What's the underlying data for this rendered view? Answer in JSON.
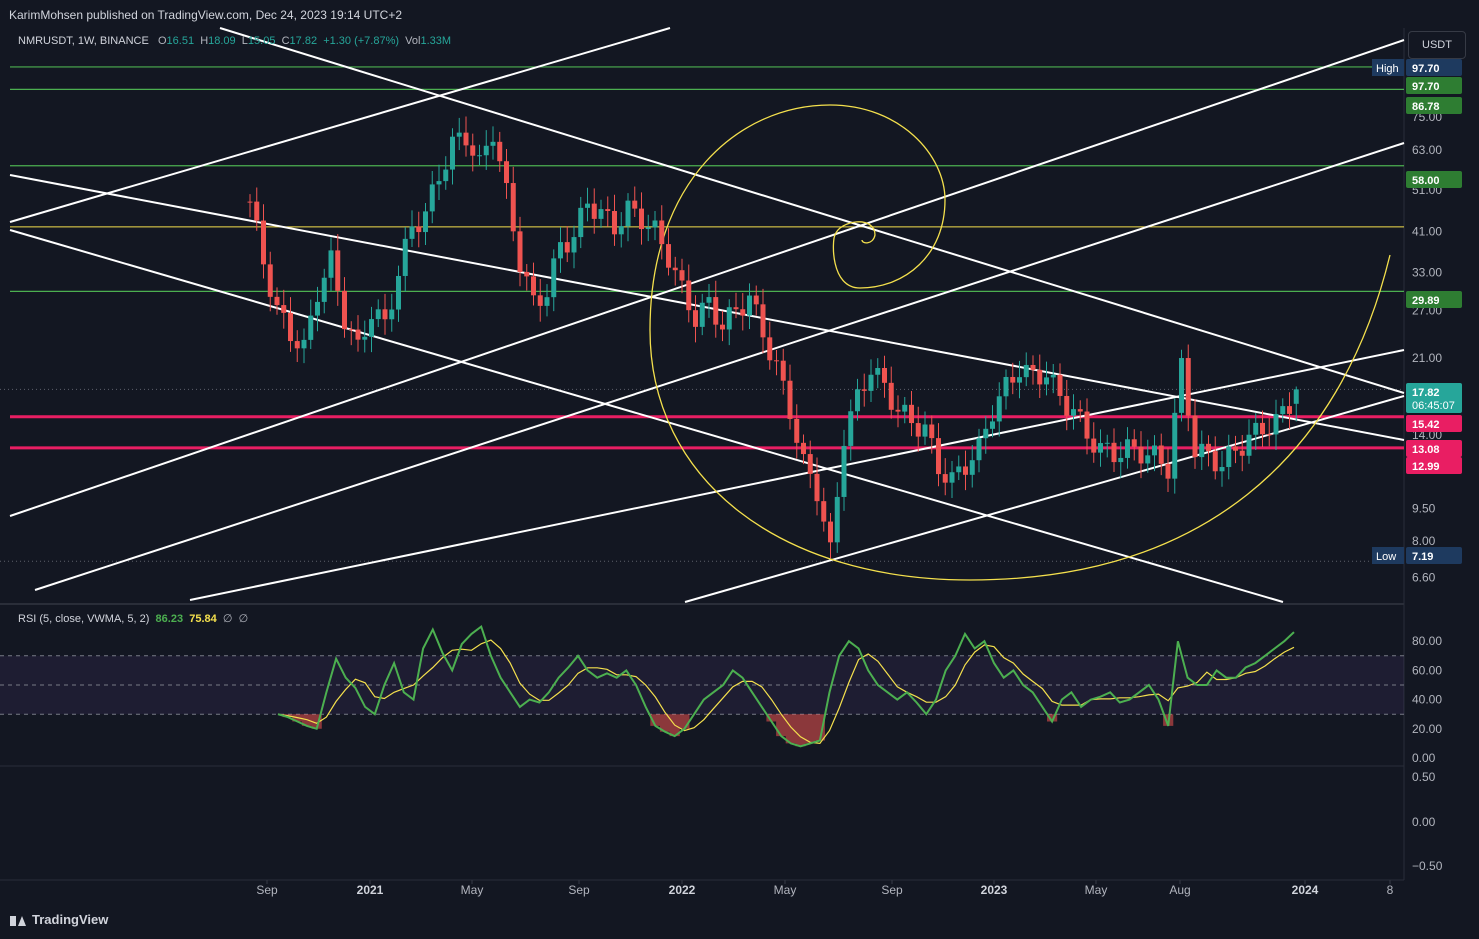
{
  "header": {
    "published_line": "KarimMohsen published on TradingView.com, Dec 24, 2023 19:14 UTC+2"
  },
  "legend": {
    "symbol": "NMRUSDT, 1W, BINANCE",
    "o_label": "O",
    "o_value": "16.51",
    "h_label": "H",
    "h_value": "18.09",
    "l_label": "L",
    "l_value": "15.05",
    "c_label": "C",
    "c_value": "17.82",
    "change": "+1.30 (+7.87%)",
    "vol_label": "Vol",
    "vol_value": "1.33M"
  },
  "rsi_legend": {
    "name": "RSI (5, close, VWMA, 5, 2)",
    "value1": "86.23",
    "value2": "75.84",
    "flag1": "∅",
    "flag2": "∅"
  },
  "price_axis": {
    "currency": "USDT",
    "ticks": [
      "75.00",
      "63.00",
      "51.00",
      "41.00",
      "33.00",
      "27.00",
      "21.00",
      "14.00",
      "9.50",
      "8.00",
      "6.60"
    ],
    "labels": [
      {
        "text": "97.70",
        "prefix": "High",
        "color": "#1e3a5f"
      },
      {
        "text": "97.70",
        "prefix": "",
        "color": "#2e7d32"
      },
      {
        "text": "86.78",
        "prefix": "",
        "color": "#2e7d32"
      },
      {
        "text": "58.00",
        "prefix": "",
        "color": "#2e7d32"
      },
      {
        "text": "29.89",
        "prefix": "",
        "color": "#2e7d32"
      },
      {
        "text": "17.82",
        "prefix": "",
        "color": "#26a69a",
        "sub": "06:45:07"
      },
      {
        "text": "15.42",
        "prefix": "",
        "color": "#e91e63"
      },
      {
        "text": "13.08",
        "prefix": "",
        "color": "#e91e63"
      },
      {
        "text": "12.99",
        "prefix": "",
        "color": "#e91e63"
      },
      {
        "text": "7.19",
        "prefix": "Low",
        "color": "#1e3a5f"
      }
    ]
  },
  "rsi_axis": {
    "ticks": [
      "80.00",
      "60.00",
      "40.00",
      "20.00",
      "0.00"
    ]
  },
  "osc_axis": {
    "ticks": [
      "0.50",
      "0.00",
      "−0.50"
    ]
  },
  "time_axis": {
    "labels": [
      {
        "text": "Sep",
        "bold": false
      },
      {
        "text": "2021",
        "bold": true
      },
      {
        "text": "May",
        "bold": false
      },
      {
        "text": "Sep",
        "bold": false
      },
      {
        "text": "2022",
        "bold": true
      },
      {
        "text": "May",
        "bold": false
      },
      {
        "text": "Sep",
        "bold": false
      },
      {
        "text": "2023",
        "bold": true
      },
      {
        "text": "May",
        "bold": false
      },
      {
        "text": "Aug",
        "bold": false
      },
      {
        "text": "2024",
        "bold": true
      },
      {
        "text": "8",
        "bold": false
      }
    ]
  },
  "footer": {
    "brand": "TradingView"
  },
  "colors": {
    "background": "#131722",
    "up": "#26a69a",
    "down": "#ef5350",
    "green_line": "#4caf50",
    "pink_line": "#e91e63",
    "yellow": "#f4e04d",
    "white": "#ffffff"
  },
  "chart_data": {
    "type": "candlestick",
    "symbol": "NMRUSDT",
    "interval": "1W",
    "scale": "log",
    "ylim": [
      5.8,
      120
    ],
    "horizontal_levels": [
      {
        "value": 97.7,
        "color": "green"
      },
      {
        "value": 86.78,
        "color": "green"
      },
      {
        "value": 58.0,
        "color": "green"
      },
      {
        "value": 42.0,
        "color": "yellow"
      },
      {
        "value": 29.89,
        "color": "green"
      },
      {
        "value": 15.42,
        "color": "pink"
      },
      {
        "value": 13.08,
        "color": "pink"
      }
    ],
    "close_path": [
      [
        0,
        48
      ],
      [
        2,
        35
      ],
      [
        4,
        27
      ],
      [
        6,
        24
      ],
      [
        8,
        22
      ],
      [
        10,
        30
      ],
      [
        12,
        35
      ],
      [
        14,
        26
      ],
      [
        16,
        22
      ],
      [
        18,
        27
      ],
      [
        20,
        25
      ],
      [
        22,
        33
      ],
      [
        24,
        42
      ],
      [
        26,
        45
      ],
      [
        28,
        55
      ],
      [
        30,
        65
      ],
      [
        32,
        68
      ],
      [
        34,
        58
      ],
      [
        36,
        70
      ],
      [
        38,
        50
      ],
      [
        40,
        35
      ],
      [
        42,
        28
      ],
      [
        44,
        30
      ],
      [
        46,
        38
      ],
      [
        48,
        40
      ],
      [
        50,
        48
      ],
      [
        52,
        45
      ],
      [
        54,
        42
      ],
      [
        56,
        46
      ],
      [
        58,
        44
      ],
      [
        60,
        41
      ],
      [
        62,
        36
      ],
      [
        64,
        30
      ],
      [
        66,
        26
      ],
      [
        68,
        28
      ],
      [
        70,
        25
      ],
      [
        72,
        27
      ],
      [
        74,
        29
      ],
      [
        76,
        24
      ],
      [
        78,
        20
      ],
      [
        80,
        16
      ],
      [
        82,
        12
      ],
      [
        84,
        10.5
      ],
      [
        86,
        7.5
      ],
      [
        88,
        14
      ],
      [
        90,
        17
      ],
      [
        92,
        20
      ],
      [
        94,
        18
      ],
      [
        96,
        16
      ],
      [
        98,
        15
      ],
      [
        100,
        14.5
      ],
      [
        102,
        11.8
      ],
      [
        104,
        11
      ],
      [
        106,
        12
      ],
      [
        108,
        13
      ],
      [
        110,
        16
      ],
      [
        112,
        18
      ],
      [
        114,
        20
      ],
      [
        116,
        19
      ],
      [
        118,
        19.5
      ],
      [
        120,
        17
      ],
      [
        122,
        16
      ],
      [
        124,
        14
      ],
      [
        126,
        13
      ],
      [
        128,
        12.7
      ],
      [
        130,
        13
      ],
      [
        132,
        12.8
      ],
      [
        134,
        12.5
      ],
      [
        136,
        11.8
      ],
      [
        138,
        20
      ],
      [
        140,
        13
      ],
      [
        142,
        12.5
      ],
      [
        144,
        12
      ],
      [
        146,
        12.9
      ],
      [
        148,
        13.8
      ],
      [
        150,
        14.5
      ],
      [
        152,
        15
      ],
      [
        154,
        16.51
      ],
      [
        155,
        17.82
      ]
    ],
    "rsi": [
      30,
      28,
      25,
      22,
      20,
      45,
      68,
      55,
      48,
      35,
      30,
      50,
      65,
      45,
      40,
      75,
      88,
      72,
      60,
      78,
      85,
      90,
      70,
      55,
      45,
      35,
      40,
      38,
      45,
      55,
      62,
      70,
      60,
      55,
      58,
      55,
      60,
      50,
      35,
      22,
      18,
      15,
      20,
      30,
      40,
      45,
      50,
      60,
      55,
      45,
      35,
      25,
      15,
      10,
      8,
      10,
      12,
      45,
      70,
      80,
      75,
      60,
      50,
      45,
      40,
      45,
      38,
      30,
      40,
      60,
      70,
      85,
      75,
      80,
      65,
      55,
      60,
      50,
      45,
      35,
      25,
      40,
      45,
      35,
      40,
      42,
      45,
      38,
      40,
      45,
      50,
      40,
      22,
      80,
      55,
      50,
      50,
      60,
      55,
      55,
      62,
      65,
      70,
      75,
      80,
      86.23
    ],
    "rsi_signal_last": 75.84,
    "rsi_levels": [
      70,
      50,
      30
    ]
  }
}
